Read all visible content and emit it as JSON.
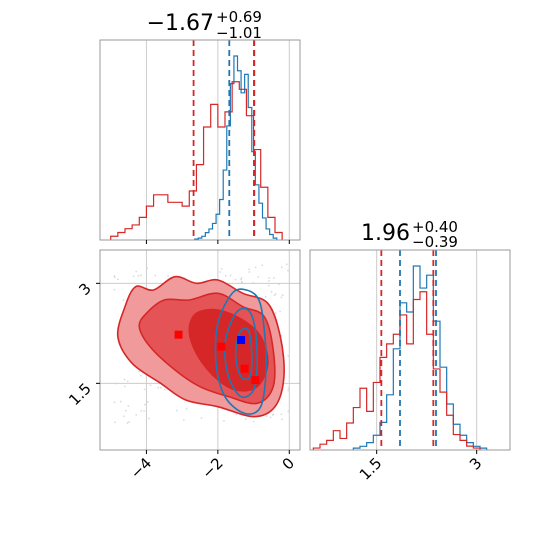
{
  "colors": {
    "red": "#d62728",
    "red_fill_outer": "#f09a9b",
    "red_fill_mid": "#e45456",
    "red_fill_inner": "#d62728",
    "blue": "#1f77b4",
    "marker_red": "#ff0000",
    "marker_blue": "#0000ff",
    "grid": "#cccccc",
    "frame": "#999999"
  },
  "chart_data": [
    {
      "type": "histogram",
      "panel": "top-left",
      "title": {
        "median": "−1.67",
        "plus": "+0.69",
        "minus": "−1.01"
      },
      "xlim": [
        -5.3,
        0.3
      ],
      "xticks": [
        -4,
        -2,
        0
      ],
      "grid": true,
      "series": [
        {
          "name": "",
          "color": "#1f77b4",
          "x": [
            -2.6,
            -2.5,
            -2.4,
            -2.3,
            -2.2,
            -2.1,
            -2.0,
            -1.9,
            -1.8,
            -1.7,
            -1.6,
            -1.5,
            -1.4,
            -1.3,
            -1.2,
            -1.1,
            -1.0,
            -0.9,
            -0.8,
            -0.7,
            -0.6,
            -0.5,
            -0.4
          ],
          "y": [
            0.5,
            1,
            2,
            4,
            6,
            9,
            14,
            22,
            38,
            62,
            85,
            100,
            92,
            80,
            90,
            72,
            48,
            30,
            20,
            12,
            6,
            3,
            1
          ]
        },
        {
          "name": "",
          "color": "#d62728",
          "x": [
            -4.9,
            -4.7,
            -4.5,
            -4.3,
            -4.1,
            -3.9,
            -3.7,
            -3.5,
            -3.3,
            -3.1,
            -2.9,
            -2.7,
            -2.5,
            -2.3,
            -2.1,
            -1.9,
            -1.7,
            -1.5,
            -1.3,
            -1.1,
            -0.9,
            -0.7,
            -0.5,
            -0.3
          ],
          "y": [
            1,
            2,
            3,
            4,
            6,
            9,
            12,
            12,
            10,
            10,
            9,
            13,
            20,
            30,
            36,
            30,
            34,
            42,
            40,
            33,
            24,
            14,
            6,
            2
          ]
        }
      ],
      "vlines": [
        {
          "x": -2.68,
          "color": "#d62728"
        },
        {
          "x": -1.68,
          "color": "#1f77b4"
        },
        {
          "x": -0.99,
          "color": "#1f77b4"
        },
        {
          "x": -0.98,
          "color": "#d62728"
        }
      ]
    },
    {
      "type": "scatter",
      "panel": "bottom-left",
      "xlim": [
        -5.3,
        0.3
      ],
      "ylim": [
        0.5,
        3.5
      ],
      "xticks": [
        -4,
        -2,
        0
      ],
      "yticks": [
        1.5,
        3.0
      ],
      "grid": true,
      "red_contours": [
        {
          "level": "outer",
          "points": [
            [
              -4.6,
              2.65
            ],
            [
              -4.3,
              2.95
            ],
            [
              -3.8,
              2.9
            ],
            [
              -3.2,
              3.1
            ],
            [
              -2.6,
              3.0
            ],
            [
              -2.0,
              3.05
            ],
            [
              -1.3,
              2.85
            ],
            [
              -0.6,
              2.7
            ],
            [
              -0.25,
              2.2
            ],
            [
              -0.15,
              1.6
            ],
            [
              -0.4,
              1.15
            ],
            [
              -1.0,
              1.0
            ],
            [
              -2.0,
              1.15
            ],
            [
              -2.9,
              1.25
            ],
            [
              -3.6,
              1.5
            ],
            [
              -4.4,
              1.8
            ],
            [
              -4.8,
              2.2
            ]
          ]
        },
        {
          "level": "mid",
          "points": [
            [
              -4.0,
              2.55
            ],
            [
              -3.5,
              2.75
            ],
            [
              -2.8,
              2.75
            ],
            [
              -2.0,
              2.85
            ],
            [
              -1.3,
              2.65
            ],
            [
              -0.7,
              2.5
            ],
            [
              -0.45,
              2.0
            ],
            [
              -0.45,
              1.45
            ],
            [
              -0.9,
              1.2
            ],
            [
              -1.7,
              1.3
            ],
            [
              -2.5,
              1.45
            ],
            [
              -3.2,
              1.7
            ],
            [
              -3.9,
              2.05
            ],
            [
              -4.2,
              2.35
            ]
          ]
        },
        {
          "level": "inner",
          "points": [
            [
              -2.6,
              2.55
            ],
            [
              -2.0,
              2.6
            ],
            [
              -1.3,
              2.45
            ],
            [
              -0.8,
              2.2
            ],
            [
              -0.6,
              1.8
            ],
            [
              -0.9,
              1.45
            ],
            [
              -1.5,
              1.4
            ],
            [
              -2.1,
              1.6
            ],
            [
              -2.6,
              1.95
            ],
            [
              -2.8,
              2.3
            ]
          ]
        }
      ],
      "blue_contours": [
        {
          "points": [
            [
              -1.6,
              2.85
            ],
            [
              -1.2,
              2.9
            ],
            [
              -0.85,
              2.75
            ],
            [
              -0.7,
              2.3
            ],
            [
              -0.65,
              1.7
            ],
            [
              -0.8,
              1.15
            ],
            [
              -1.25,
              1.05
            ],
            [
              -1.8,
              1.3
            ],
            [
              -2.05,
              1.8
            ],
            [
              -2.0,
              2.4
            ]
          ]
        },
        {
          "points": [
            [
              -1.5,
              2.55
            ],
            [
              -1.15,
              2.6
            ],
            [
              -0.95,
              2.3
            ],
            [
              -0.9,
              1.75
            ],
            [
              -1.0,
              1.4
            ],
            [
              -1.35,
              1.3
            ],
            [
              -1.7,
              1.6
            ],
            [
              -1.8,
              2.1
            ]
          ]
        },
        {
          "points": [
            [
              -1.4,
              2.25
            ],
            [
              -1.15,
              2.3
            ],
            [
              -1.05,
              1.95
            ],
            [
              -1.1,
              1.6
            ],
            [
              -1.35,
              1.6
            ],
            [
              -1.5,
              1.9
            ]
          ]
        }
      ],
      "markers": [
        {
          "x": -3.1,
          "y": 2.23,
          "color": "#ff0000"
        },
        {
          "x": -1.9,
          "y": 2.05,
          "color": "#ff0000"
        },
        {
          "x": -1.25,
          "y": 1.72,
          "color": "#ff0000"
        },
        {
          "x": -0.95,
          "y": 1.55,
          "color": "#ff0000"
        },
        {
          "x": -1.35,
          "y": 2.15,
          "color": "#0000ff"
        }
      ]
    },
    {
      "type": "histogram",
      "panel": "bottom-right",
      "title": {
        "median": "1.96",
        "plus": "+0.40",
        "minus": "−0.39"
      },
      "xlim": [
        0.5,
        3.5
      ],
      "xticks": [
        1.5,
        3.0
      ],
      "grid": true,
      "series": [
        {
          "name": "",
          "color": "#1f77b4",
          "x": [
            1.2,
            1.3,
            1.4,
            1.5,
            1.6,
            1.7,
            1.8,
            1.9,
            2.0,
            2.1,
            2.2,
            2.3,
            2.4,
            2.5,
            2.6,
            2.7,
            2.8,
            2.9,
            3.0,
            3.1
          ],
          "y": [
            1,
            2,
            4,
            8,
            15,
            30,
            55,
            80,
            75,
            100,
            88,
            95,
            70,
            45,
            25,
            14,
            8,
            4,
            2,
            1
          ]
        },
        {
          "name": "",
          "color": "#d62728",
          "x": [
            0.6,
            0.7,
            0.8,
            0.9,
            1.0,
            1.1,
            1.2,
            1.3,
            1.4,
            1.5,
            1.6,
            1.7,
            1.8,
            1.9,
            2.0,
            2.1,
            2.2,
            2.3,
            2.4,
            2.5,
            2.6,
            2.7,
            2.8,
            2.9,
            3.0
          ],
          "y": [
            1,
            3,
            5,
            10,
            6,
            14,
            22,
            32,
            20,
            35,
            48,
            55,
            60,
            70,
            55,
            78,
            82,
            60,
            42,
            30,
            18,
            8,
            5,
            2,
            1
          ]
        }
      ],
      "vlines": [
        {
          "x": 1.57,
          "color": "#d62728"
        },
        {
          "x": 1.85,
          "color": "#1f77b4"
        },
        {
          "x": 2.35,
          "color": "#d62728"
        },
        {
          "x": 2.39,
          "color": "#1f77b4"
        }
      ]
    }
  ]
}
